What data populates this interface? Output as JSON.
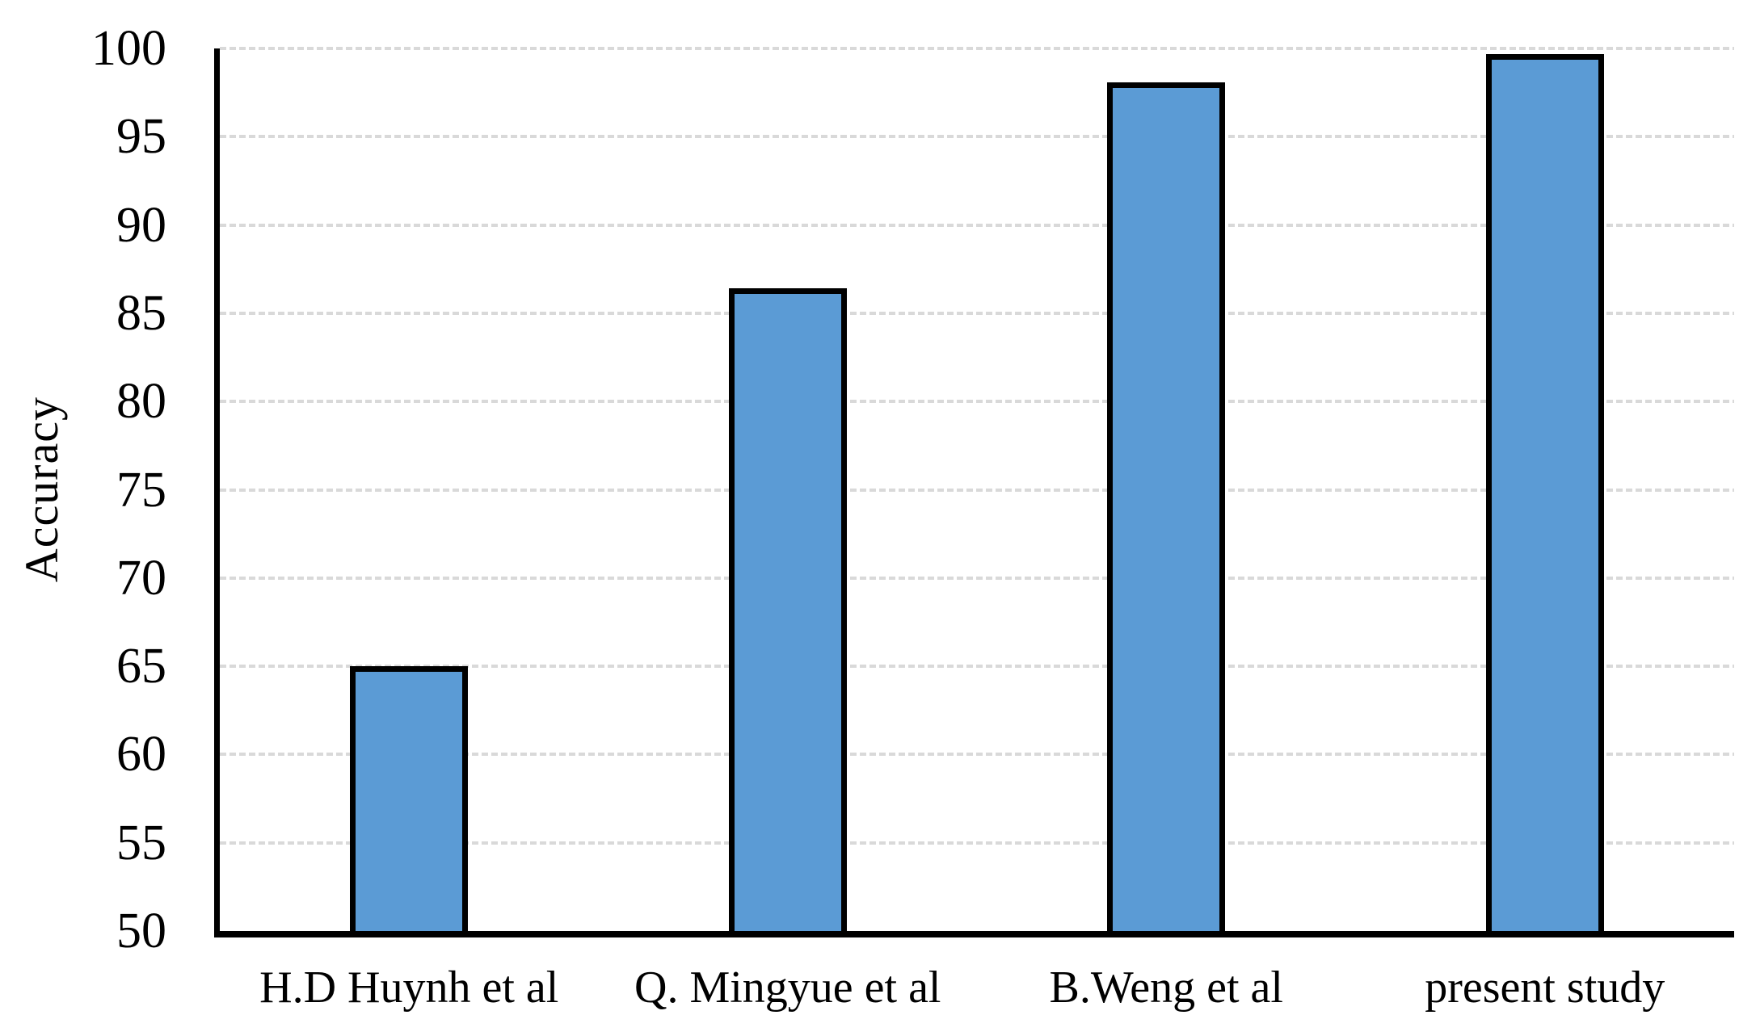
{
  "chart_data": {
    "type": "bar",
    "title": "",
    "xlabel": "",
    "ylabel": "Accuracy",
    "categories": [
      "H.D Huynh et al",
      "Q. Mingyue et al",
      "B.Weng et al",
      "present study"
    ],
    "values": [
      65,
      86.4,
      98.1,
      99.7
    ],
    "ylim": [
      50,
      100
    ],
    "ytick_step": 5,
    "ytick_labels": [
      "50",
      "55",
      "60",
      "65",
      "70",
      "75",
      "80",
      "85",
      "90",
      "95",
      "100"
    ],
    "legend": null,
    "grid": "horizontal-dotted",
    "colors": {
      "bar_fill": "#5B9BD5",
      "bar_border": "#000000",
      "axis_line": "#000000",
      "gridline": "#D9D9D9",
      "background": "#FFFFFF",
      "text": "#000000"
    }
  }
}
